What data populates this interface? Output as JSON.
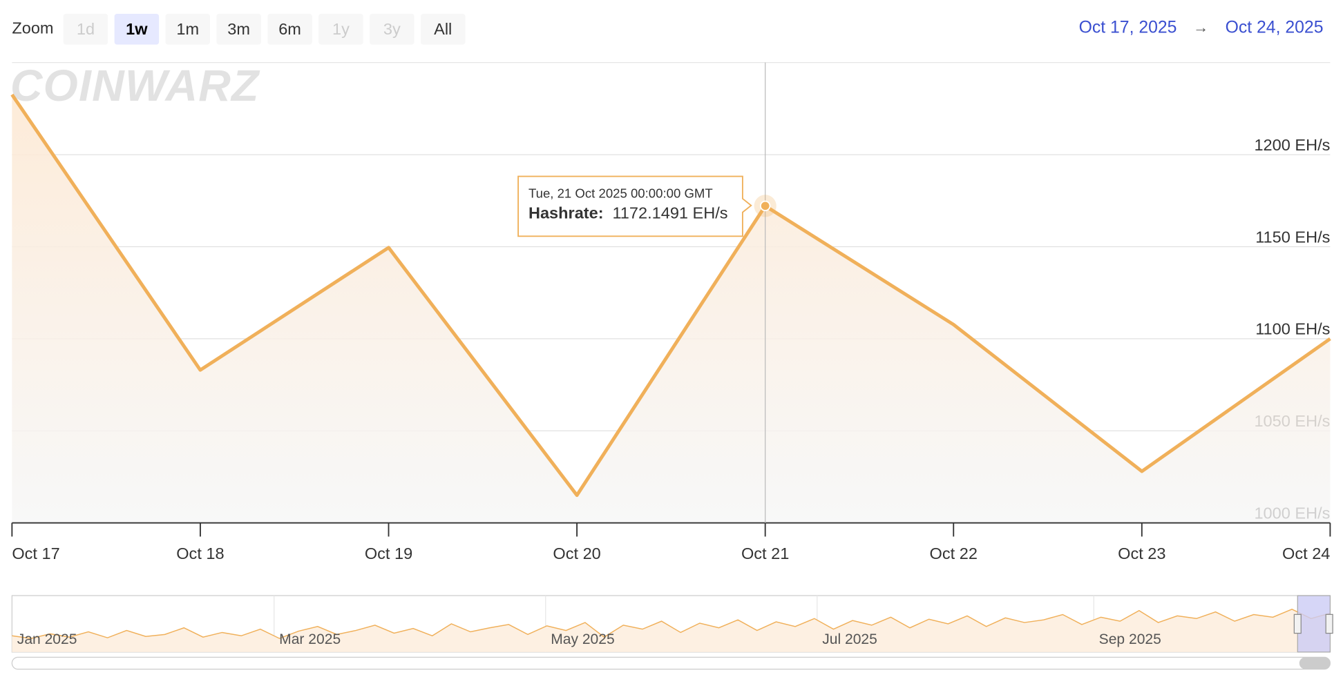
{
  "toolbar": {
    "zoom_label": "Zoom",
    "buttons": [
      "1d",
      "1w",
      "1m",
      "3m",
      "6m",
      "1y",
      "3y",
      "All"
    ],
    "selected": "1w",
    "disabled": [
      "1d",
      "1y",
      "3y"
    ],
    "from": "Oct 17, 2025",
    "arrow": "→",
    "to": "Oct 24, 2025"
  },
  "watermark": "COINWARZ",
  "chart_data": {
    "type": "line",
    "categories": [
      "Oct 17",
      "Oct 18",
      "Oct 19",
      "Oct 20",
      "Oct 21",
      "Oct 22",
      "Oct 23",
      "Oct 24"
    ],
    "series": [
      {
        "name": "Hashrate",
        "color": "#f0b05a",
        "values": [
          1232.6,
          1083,
          1149.5,
          1015,
          1172.1491,
          1107.7,
          1028,
          1100
        ]
      }
    ],
    "ylim": [
      1000,
      1250
    ],
    "yticks": [
      {
        "value": 1000,
        "label": "1000 EH/s"
      },
      {
        "value": 1050,
        "label": "1050 EH/s"
      },
      {
        "value": 1100,
        "label": "1100 EH/s"
      },
      {
        "value": 1150,
        "label": "1150 EH/s"
      },
      {
        "value": 1200,
        "label": "1200 EH/s"
      }
    ],
    "grid": true,
    "tooltip": {
      "index": 4,
      "date": "Tue, 21 Oct 2025 00:00:00 GMT",
      "label": "Hashrate:",
      "value_label": "1172.1491 EH/s"
    }
  },
  "navigator": {
    "labels": [
      "Jan 2025",
      "Mar 2025",
      "May 2025",
      "Jul 2025",
      "Sep 2025"
    ],
    "values": [
      960,
      940,
      975,
      950,
      990,
      945,
      1000,
      955,
      970,
      1020,
      950,
      985,
      960,
      1010,
      940,
      995,
      1030,
      970,
      1000,
      1040,
      980,
      1015,
      960,
      1050,
      990,
      1020,
      1045,
      970,
      1035,
      1000,
      1060,
      950,
      1040,
      1010,
      1070,
      985,
      1055,
      1020,
      1080,
      1000,
      1065,
      1030,
      1090,
      1010,
      1075,
      1040,
      1100,
      1020,
      1085,
      1050,
      1110,
      1030,
      1095,
      1060,
      1080,
      1120,
      1045,
      1100,
      1070,
      1150,
      1060,
      1110,
      1090,
      1140,
      1070,
      1120,
      1100,
      1160,
      1090,
      1130
    ],
    "ylim": [
      850,
      1250
    ]
  }
}
